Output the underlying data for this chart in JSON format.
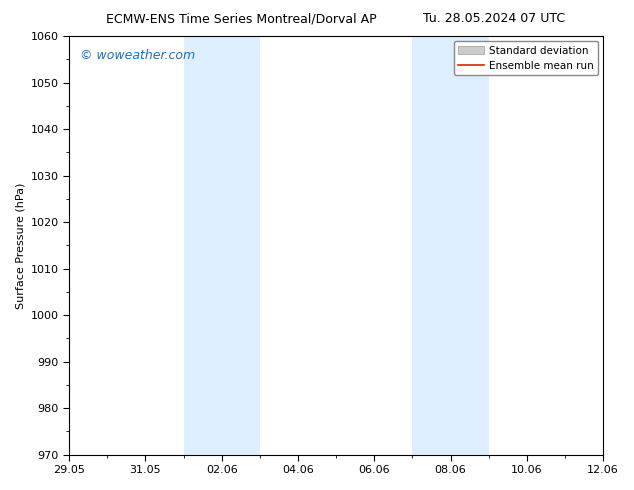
{
  "title_left": "ECMW-ENS Time Series Montreal/Dorval AP",
  "title_right": "Tu. 28.05.2024 07 UTC",
  "ylabel": "Surface Pressure (hPa)",
  "watermark": "© woweather.com",
  "watermark_color": "#1a6fcc",
  "ylim": [
    970,
    1060
  ],
  "yticks": [
    970,
    980,
    990,
    1000,
    1010,
    1020,
    1030,
    1040,
    1050,
    1060
  ],
  "xtick_labels": [
    "29.05",
    "31.05",
    "02.06",
    "04.06",
    "06.06",
    "08.06",
    "10.06",
    "12.06"
  ],
  "xtick_positions": [
    0,
    2,
    4,
    6,
    8,
    10,
    12,
    14
  ],
  "x_min": 0,
  "x_max": 14,
  "shaded_regions": [
    {
      "x_start": 3,
      "x_end": 5
    },
    {
      "x_start": 9,
      "x_end": 11
    }
  ],
  "shaded_color": "#ddeeff",
  "legend_items": [
    {
      "label": "Standard deviation",
      "color": "#cccccc",
      "type": "patch"
    },
    {
      "label": "Ensemble mean run",
      "color": "#dd2200",
      "type": "line"
    }
  ],
  "bg_color": "#ffffff",
  "tick_fontsize": 8,
  "ylabel_fontsize": 8,
  "title_fontsize": 9,
  "watermark_fontsize": 9
}
